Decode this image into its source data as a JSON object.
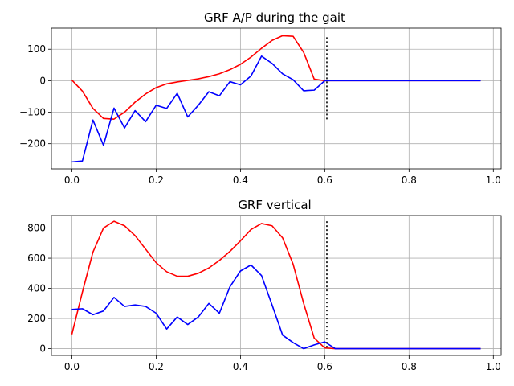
{
  "chart_data": [
    {
      "type": "line",
      "title": "GRF A/P  during the gait",
      "xlabel": "",
      "ylabel": "",
      "xlim": [
        -0.0485,
        1.0185
      ],
      "ylim": [
        -280,
        167
      ],
      "xticks": [
        0.0,
        0.2,
        0.4,
        0.6,
        0.8,
        1.0
      ],
      "xtick_labels": [
        "0.0",
        "0.2",
        "0.4",
        "0.6",
        "0.8",
        "1.0"
      ],
      "yticks": [
        -200,
        -100,
        0,
        100
      ],
      "ytick_labels": [
        "−200",
        "−100",
        "0",
        "100"
      ],
      "grid": true,
      "series": [
        {
          "color": "#ff0000",
          "x": [
            0.0,
            0.025,
            0.05,
            0.075,
            0.1,
            0.125,
            0.15,
            0.175,
            0.2,
            0.225,
            0.25,
            0.275,
            0.3,
            0.325,
            0.35,
            0.375,
            0.4,
            0.425,
            0.45,
            0.475,
            0.5,
            0.525,
            0.55,
            0.575,
            0.6,
            0.625,
            0.65,
            0.7,
            0.75,
            0.8,
            0.85,
            0.9,
            0.95,
            0.97
          ],
          "y": [
            2,
            -33,
            -88,
            -120,
            -122,
            -100,
            -68,
            -42,
            -22,
            -10,
            -4,
            1,
            6,
            13,
            22,
            35,
            52,
            75,
            103,
            128,
            143,
            141,
            90,
            5,
            0,
            0,
            0,
            0,
            0,
            0,
            0,
            0,
            0,
            0
          ]
        },
        {
          "color": "#0000ff",
          "x": [
            0.0,
            0.025,
            0.05,
            0.075,
            0.1,
            0.125,
            0.15,
            0.175,
            0.2,
            0.225,
            0.25,
            0.275,
            0.3,
            0.325,
            0.35,
            0.375,
            0.4,
            0.425,
            0.45,
            0.475,
            0.5,
            0.525,
            0.55,
            0.575,
            0.6,
            0.625,
            0.65,
            0.7,
            0.75,
            0.8,
            0.85,
            0.9,
            0.95,
            0.97
          ],
          "y": [
            -258,
            -255,
            -125,
            -205,
            -87,
            -150,
            -95,
            -130,
            -78,
            -88,
            -40,
            -115,
            -78,
            -35,
            -48,
            -3,
            -13,
            15,
            78,
            55,
            22,
            3,
            -32,
            -30,
            0,
            0,
            0,
            0,
            0,
            0,
            0,
            0,
            0,
            0
          ]
        }
      ],
      "vline": {
        "x": 0.605,
        "y_from": -125,
        "y_to": 138,
        "color": "#000000",
        "style": "dotted"
      }
    },
    {
      "type": "line",
      "title": "GRF vertical",
      "xlabel": "",
      "ylabel": "",
      "xlim": [
        -0.0485,
        1.0185
      ],
      "ylim": [
        -45,
        883
      ],
      "xticks": [
        0.0,
        0.2,
        0.4,
        0.6,
        0.8,
        1.0
      ],
      "xtick_labels": [
        "0.0",
        "0.2",
        "0.4",
        "0.6",
        "0.8",
        "1.0"
      ],
      "yticks": [
        0,
        200,
        400,
        600,
        800
      ],
      "ytick_labels": [
        "0",
        "200",
        "400",
        "600",
        "800"
      ],
      "grid": true,
      "series": [
        {
          "color": "#ff0000",
          "x": [
            0.0,
            0.025,
            0.05,
            0.075,
            0.1,
            0.125,
            0.15,
            0.175,
            0.2,
            0.225,
            0.25,
            0.275,
            0.3,
            0.325,
            0.35,
            0.375,
            0.4,
            0.425,
            0.45,
            0.475,
            0.5,
            0.525,
            0.55,
            0.575,
            0.6,
            0.625,
            0.65,
            0.7,
            0.75,
            0.8,
            0.85,
            0.9,
            0.95,
            0.97
          ],
          "y": [
            95,
            375,
            640,
            800,
            845,
            815,
            750,
            660,
            570,
            510,
            480,
            480,
            500,
            535,
            585,
            645,
            715,
            790,
            830,
            815,
            735,
            560,
            300,
            70,
            5,
            0,
            0,
            0,
            0,
            0,
            0,
            0,
            0,
            0
          ]
        },
        {
          "color": "#0000ff",
          "x": [
            0.0,
            0.025,
            0.05,
            0.075,
            0.1,
            0.125,
            0.15,
            0.175,
            0.2,
            0.225,
            0.25,
            0.275,
            0.3,
            0.325,
            0.35,
            0.375,
            0.4,
            0.425,
            0.45,
            0.475,
            0.5,
            0.525,
            0.55,
            0.575,
            0.6,
            0.625,
            0.65,
            0.7,
            0.75,
            0.8,
            0.85,
            0.9,
            0.95,
            0.97
          ],
          "y": [
            260,
            265,
            225,
            250,
            340,
            280,
            290,
            280,
            235,
            130,
            210,
            160,
            210,
            300,
            235,
            410,
            515,
            555,
            485,
            290,
            90,
            40,
            0,
            25,
            45,
            0,
            0,
            0,
            0,
            0,
            0,
            0,
            0,
            0
          ]
        }
      ],
      "vline": {
        "x": 0.605,
        "y_from": -5,
        "y_to": 845,
        "color": "#000000",
        "style": "dotted"
      }
    }
  ]
}
